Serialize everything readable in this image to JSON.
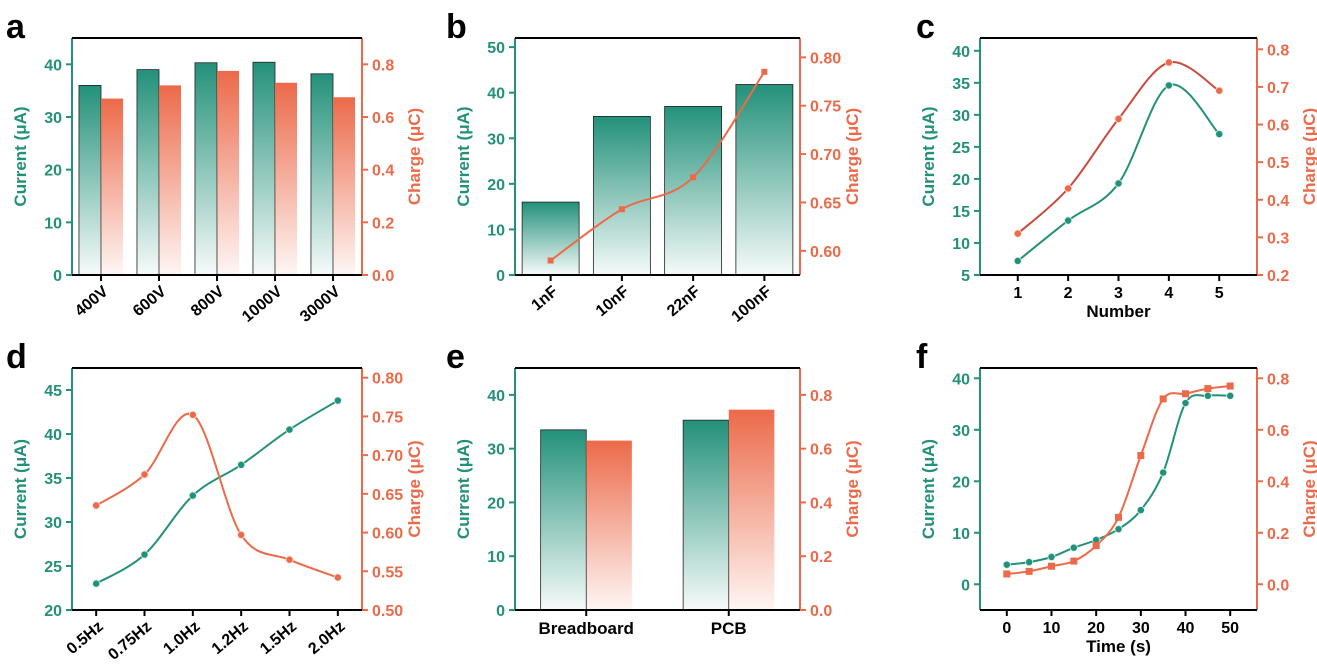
{
  "colors": {
    "current": "#23917a",
    "charge": "#ec6a4a",
    "axis": "#000000"
  },
  "chart_data": [
    {
      "panel": "a",
      "type": "bar",
      "categories": [
        "400V",
        "600V",
        "800V",
        "1000V",
        "3000V"
      ],
      "ylabel": "Current (μA)",
      "y2label": "Charge (μC)",
      "ylim": [
        0,
        45
      ],
      "yticks": [
        0,
        10,
        20,
        30,
        40
      ],
      "y2lim": [
        0,
        0.9
      ],
      "y2ticks": [
        "0.0",
        "0.2",
        "0.4",
        "0.6",
        "0.8"
      ],
      "series": [
        {
          "name": "Current",
          "axis": "left",
          "values": [
            36,
            39,
            40.3,
            40.4,
            38.2
          ]
        },
        {
          "name": "Charge",
          "axis": "right",
          "values": [
            0.67,
            0.72,
            0.775,
            0.73,
            0.675
          ]
        }
      ]
    },
    {
      "panel": "b",
      "type": "bar+line",
      "categories": [
        "1nF",
        "10nF",
        "22nF",
        "100nF"
      ],
      "ylabel": "Current (μA)",
      "y2label": "Charge (μC)",
      "ylim": [
        0,
        52
      ],
      "yticks": [
        0,
        10,
        20,
        30,
        40,
        50
      ],
      "y2lim": [
        0.575,
        0.82
      ],
      "y2ticks": [
        "0.60",
        "0.65",
        "0.70",
        "0.75",
        "0.80"
      ],
      "series": [
        {
          "name": "Current",
          "axis": "left",
          "kind": "bar",
          "values": [
            16,
            34.8,
            37,
            41.8
          ]
        },
        {
          "name": "Charge",
          "axis": "right",
          "kind": "line",
          "values": [
            0.59,
            0.643,
            0.676,
            0.785
          ]
        }
      ]
    },
    {
      "panel": "c",
      "type": "scatter",
      "x": [
        1,
        2,
        3,
        4,
        5
      ],
      "xticks": [
        "1",
        "2",
        "3",
        "4",
        "5"
      ],
      "xlim": [
        0.25,
        5.75
      ],
      "xlabel": "Number",
      "ylabel": "Current (μA)",
      "y2label": "Charge (μC)",
      "ylim": [
        5,
        42
      ],
      "yticks": [
        5,
        10,
        15,
        20,
        25,
        30,
        35,
        40
      ],
      "y2lim": [
        0.2,
        0.83
      ],
      "y2ticks": [
        "0.2",
        "0.3",
        "0.4",
        "0.5",
        "0.6",
        "0.7",
        "0.8"
      ],
      "series": [
        {
          "name": "Current",
          "axis": "left",
          "values": [
            7.2,
            13.5,
            19.3,
            34.6,
            27
          ]
        },
        {
          "name": "Charge",
          "axis": "right",
          "values": [
            0.31,
            0.43,
            0.615,
            0.765,
            0.69
          ]
        }
      ]
    },
    {
      "panel": "d",
      "type": "scatter",
      "categories": [
        "0.5Hz",
        "0.75Hz",
        "1.0Hz",
        "1.2Hz",
        "1.5Hz",
        "2.0Hz"
      ],
      "ylabel": "Current (μA)",
      "y2label": "Charge (μC)",
      "ylim": [
        20,
        47.5
      ],
      "yticks": [
        20,
        25,
        30,
        35,
        40,
        45
      ],
      "y2lim": [
        0.5,
        0.8125
      ],
      "y2ticks": [
        "0.50",
        "0.55",
        "0.60",
        "0.65",
        "0.70",
        "0.75",
        "0.80"
      ],
      "series": [
        {
          "name": "Current",
          "axis": "left",
          "values": [
            23,
            26.3,
            33,
            36.5,
            40.5,
            43.8
          ]
        },
        {
          "name": "Charge",
          "axis": "right",
          "values": [
            0.635,
            0.675,
            0.752,
            0.597,
            0.565,
            0.542
          ]
        }
      ]
    },
    {
      "panel": "e",
      "type": "bar",
      "categories": [
        "Breadboard",
        "PCB"
      ],
      "ylabel": "Current (μA)",
      "y2label": "Charge (μC)",
      "ylim": [
        0,
        45
      ],
      "yticks": [
        0,
        10,
        20,
        30,
        40
      ],
      "y2lim": [
        0,
        0.9
      ],
      "y2ticks": [
        "0.0",
        "0.2",
        "0.4",
        "0.6",
        "0.8"
      ],
      "series": [
        {
          "name": "Current",
          "axis": "left",
          "values": [
            33.5,
            35.3
          ]
        },
        {
          "name": "Charge",
          "axis": "right",
          "values": [
            0.63,
            0.745
          ]
        }
      ]
    },
    {
      "panel": "f",
      "type": "scatter",
      "x": [
        0,
        5,
        10,
        15,
        20,
        25,
        30,
        35,
        40,
        45,
        50
      ],
      "xticks": [
        "0",
        "10",
        "20",
        "30",
        "40",
        "50"
      ],
      "xlim": [
        -6,
        56
      ],
      "xlabel": "Time (s)",
      "ylabel": "Current (μA)",
      "y2label": "Charge (μC)",
      "ylim": [
        -5,
        42
      ],
      "yticks": [
        0,
        10,
        20,
        30,
        40
      ],
      "y2lim": [
        -0.1,
        0.84
      ],
      "y2ticks": [
        "0.0",
        "0.2",
        "0.4",
        "0.6",
        "0.8"
      ],
      "series": [
        {
          "name": "Current",
          "axis": "left",
          "values": [
            3.8,
            4.3,
            5.3,
            7.1,
            8.6,
            10.7,
            14.4,
            21.7,
            35.2,
            36.6,
            36.6
          ]
        },
        {
          "name": "Charge",
          "axis": "right",
          "values": [
            0.04,
            0.05,
            0.07,
            0.09,
            0.15,
            0.26,
            0.5,
            0.72,
            0.74,
            0.76,
            0.77
          ]
        }
      ]
    }
  ]
}
